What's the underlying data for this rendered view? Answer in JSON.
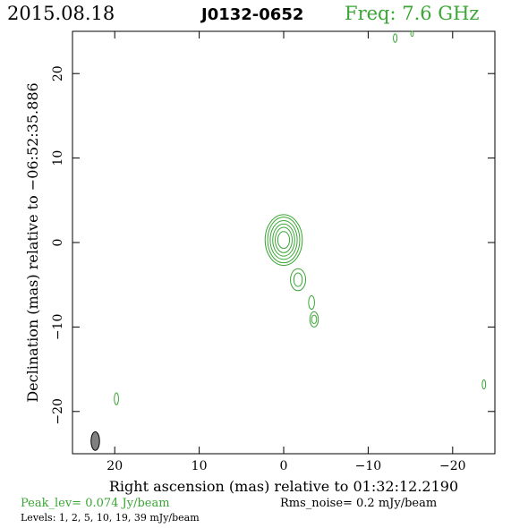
{
  "header": {
    "date": "2015.08.18",
    "source": "J0132-0652",
    "freq": "Freq: 7.6 GHz"
  },
  "footer": {
    "peak": "Peak_lev=  0.074 Jy/beam",
    "rms": "Rms_noise=   0.2 mJy/beam",
    "levels": "Levels:   1,   2,   5,  10,  19,  39 mJy/beam"
  },
  "colors": {
    "contour": "#3aa635",
    "peak_text": "#3aa635",
    "freq_text": "#3aa635",
    "beam_fill": "#808080",
    "axis": "#000000"
  },
  "chart_data": {
    "type": "contour",
    "xlabel": "Right ascension (mas) relative to 01:32:12.2190",
    "ylabel": "Declination (mas) relative to −06:52:35.886",
    "xlim": [
      25,
      -25
    ],
    "ylim": [
      -25,
      25
    ],
    "x_ticks": [
      20,
      10,
      0,
      -10,
      -20
    ],
    "x_tick_labels": [
      "20",
      "10",
      "0",
      "−10",
      "−20"
    ],
    "y_ticks": [
      20,
      10,
      0,
      -10,
      -20
    ],
    "y_tick_labels": [
      "20",
      "10",
      "0",
      "−10",
      "−20"
    ],
    "contour_levels_mJy": [
      1,
      2,
      5,
      10,
      19,
      39
    ],
    "beam": {
      "x": 22.3,
      "y": -23.5,
      "major": 2.2,
      "minor": 1.0,
      "pa_deg": 0
    },
    "components": [
      {
        "name": "core",
        "x": 0.0,
        "y": 0.3,
        "rx": [
          2.2,
          1.9,
          1.6,
          1.3,
          1.0,
          0.7
        ],
        "ry": [
          3.0,
          2.7,
          2.3,
          1.9,
          1.5,
          1.0
        ]
      },
      {
        "name": "jet-knot-1",
        "x": -1.7,
        "y": -4.4,
        "rx": [
          0.9,
          0.5
        ],
        "ry": [
          1.3,
          0.8
        ]
      },
      {
        "name": "jet-knot-2",
        "x": -3.6,
        "y": -9.1,
        "rx": [
          0.5,
          0.3
        ],
        "ry": [
          0.9,
          0.5
        ]
      },
      {
        "name": "jet-bridge",
        "x": -3.3,
        "y": -7.1,
        "rx": [
          0.35
        ],
        "ry": [
          0.8
        ]
      },
      {
        "name": "patch-right",
        "x": -23.7,
        "y": -16.8,
        "rx": [
          0.2
        ],
        "ry": [
          0.55
        ]
      },
      {
        "name": "patch-left",
        "x": 19.8,
        "y": -18.5,
        "rx": [
          0.25
        ],
        "ry": [
          0.7
        ]
      },
      {
        "name": "patch-top-1",
        "x": -13.2,
        "y": 24.2,
        "rx": [
          0.22
        ],
        "ry": [
          0.5
        ]
      },
      {
        "name": "patch-top-2",
        "x": -15.2,
        "y": 24.7,
        "rx": [
          0.15
        ],
        "ry": [
          0.3
        ]
      }
    ]
  }
}
